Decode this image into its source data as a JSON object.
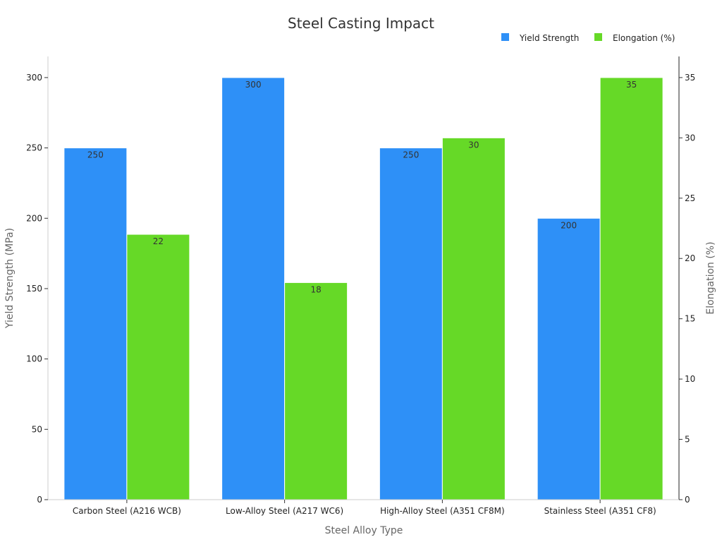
{
  "chart_data": {
    "type": "bar",
    "title": "Steel Casting Impact",
    "xlabel": "Steel Alloy Type",
    "ylabel": "Yield Strength (MPa)",
    "y2label": "Elongation (%)",
    "categories": [
      "Carbon Steel (A216 WCB)",
      "Low-Alloy Steel (A217 WC6)",
      "High-Alloy Steel (A351 CF8M)",
      "Stainless Steel (A351 CF8)"
    ],
    "series": [
      {
        "name": "Yield Strength",
        "axis": "left",
        "color": "#2e90f7",
        "values": [
          250,
          300,
          250,
          200
        ]
      },
      {
        "name": "Elongation (%)",
        "axis": "right",
        "color": "#66d927",
        "values": [
          22,
          18,
          30,
          35
        ]
      }
    ],
    "ylim": [
      0,
      315
    ],
    "y2lim": [
      0,
      36.75
    ],
    "yticks": [
      0,
      50,
      100,
      150,
      200,
      250,
      300
    ],
    "y2ticks": [
      0,
      5,
      10,
      15,
      20,
      25,
      30,
      35
    ],
    "legend_position": "top-right",
    "grid": false
  }
}
